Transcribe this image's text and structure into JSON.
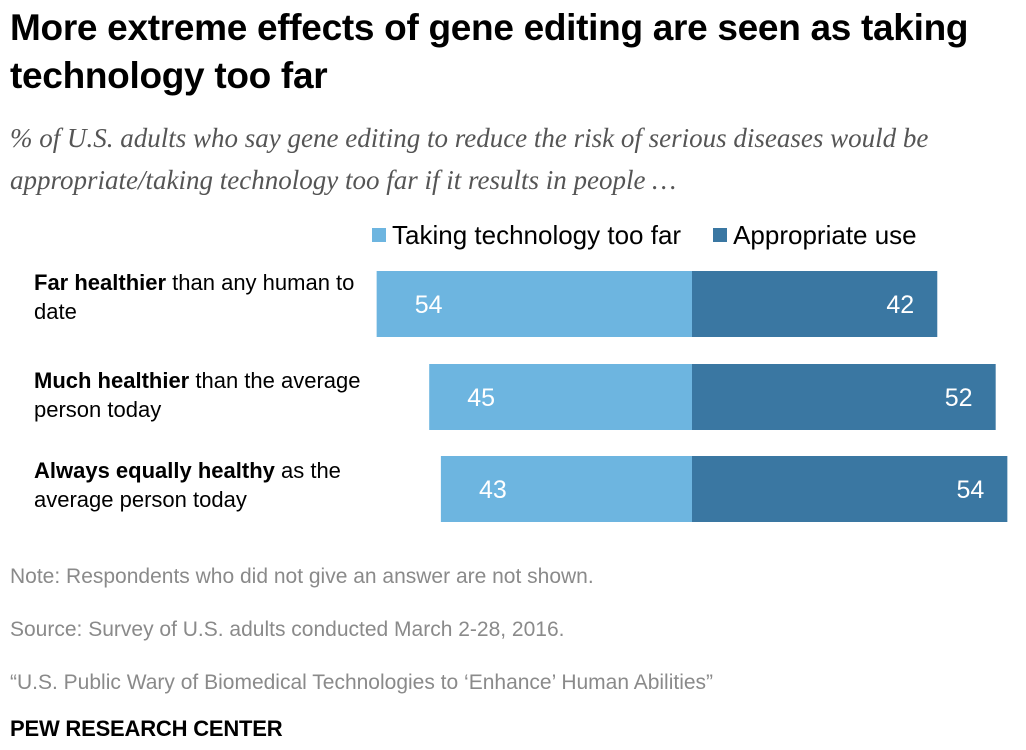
{
  "title": "More extreme effects of gene editing are seen as taking technology too far",
  "subtitle": "% of U.S. adults who say gene editing to reduce the risk of serious diseases would be appropriate/taking technology too far if it results in people …",
  "colors": {
    "too_far": "#6db5e0",
    "appropriate": "#3a77a2",
    "value_label": "#ffffff"
  },
  "chart_data": {
    "type": "bar",
    "orientation": "horizontal-diverging",
    "categories": [
      {
        "bold": "Far healthier",
        "rest": " than any human to date"
      },
      {
        "bold": "Much healthier",
        "rest": " than the average person today"
      },
      {
        "bold": "Always equally healthy",
        "rest": " as the average person today"
      }
    ],
    "series": [
      {
        "name": "Taking technology too far",
        "values": [
          54,
          45,
          43
        ],
        "color": "#6db5e0"
      },
      {
        "name": "Appropriate use",
        "values": [
          42,
          52,
          54
        ],
        "color": "#3a77a2"
      }
    ],
    "legend": "top"
  },
  "footer": {
    "note": "Note: Respondents who did not give an answer are not shown.",
    "source": "Source: Survey of U.S. adults conducted March 2-28, 2016.",
    "report": "“U.S. Public Wary of Biomedical Technologies to ‘Enhance’ Human Abilities”",
    "brand": "PEW RESEARCH CENTER"
  }
}
